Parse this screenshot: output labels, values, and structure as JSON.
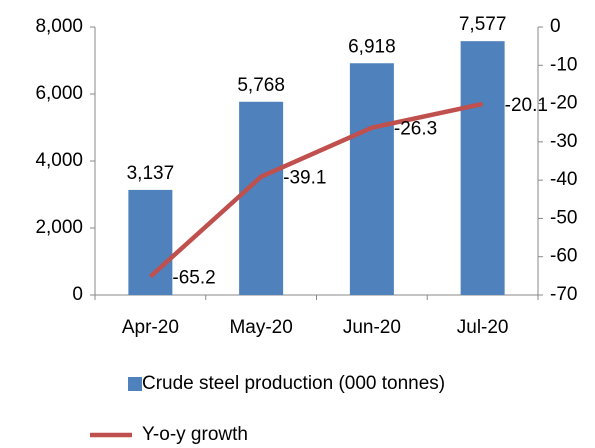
{
  "chart_data": {
    "type": "bar",
    "categories": [
      "Apr-20",
      "May-20",
      "Jun-20",
      "Jul-20"
    ],
    "series": [
      {
        "name": "Crude steel production (000 tonnes)",
        "type": "bar",
        "color": "#4f81bd",
        "values": [
          3137,
          5768,
          6918,
          7577
        ],
        "value_labels": [
          "3,137",
          "5,768",
          "6,918",
          "7,577"
        ]
      },
      {
        "name": "Y-o-y growth",
        "type": "line",
        "axis": "y2",
        "color": "#c0504d",
        "values": [
          -65.2,
          -39.1,
          -26.3,
          -20.1
        ]
      }
    ],
    "ylim": [
      0,
      8000
    ],
    "yticks": [
      0,
      {
        "value": 2000,
        "label": "2,000"
      },
      {
        "value": 4000,
        "label": "4,000"
      },
      {
        "value": 6000,
        "label": "6,000"
      },
      {
        "value": 8000,
        "label": "8,000"
      }
    ],
    "y2lim": [
      -70,
      0
    ],
    "y2ticks": [
      -70,
      -60,
      -50,
      -40,
      -30,
      -20,
      -10,
      0
    ],
    "grid": false,
    "legend": "bottom"
  }
}
